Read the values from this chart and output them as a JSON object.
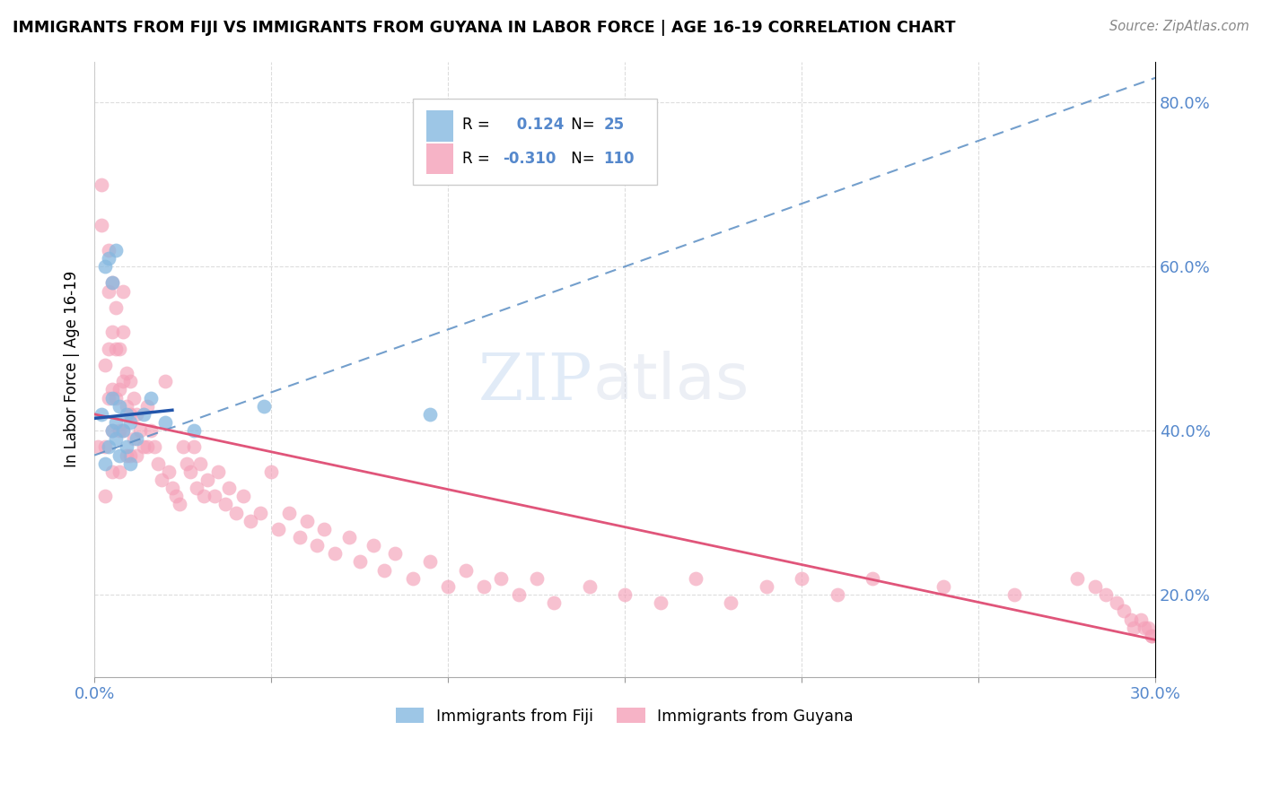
{
  "title": "IMMIGRANTS FROM FIJI VS IMMIGRANTS FROM GUYANA IN LABOR FORCE | AGE 16-19 CORRELATION CHART",
  "source": "Source: ZipAtlas.com",
  "ylabel": "In Labor Force | Age 16-19",
  "xlim": [
    0.0,
    0.3
  ],
  "ylim": [
    0.1,
    0.85
  ],
  "xtick_positions": [
    0.0,
    0.05,
    0.1,
    0.15,
    0.2,
    0.25,
    0.3
  ],
  "xticklabels": [
    "0.0%",
    "",
    "",
    "",
    "",
    "",
    "30.0%"
  ],
  "ytick_positions": [
    0.2,
    0.4,
    0.6,
    0.8
  ],
  "yticklabels": [
    "20.0%",
    "40.0%",
    "60.0%",
    "80.0%"
  ],
  "fiji_color": "#85b8e0",
  "guyana_color": "#f4a0b8",
  "fiji_trend_color": "#5b8ec4",
  "guyana_trend_color": "#e0557a",
  "fiji_R": 0.124,
  "fiji_N": 25,
  "guyana_R": -0.31,
  "guyana_N": 110,
  "tick_color": "#5588cc",
  "grid_color": "#dddddd",
  "fiji_scatter_x": [
    0.002,
    0.003,
    0.003,
    0.004,
    0.004,
    0.005,
    0.005,
    0.005,
    0.006,
    0.006,
    0.006,
    0.007,
    0.007,
    0.008,
    0.009,
    0.009,
    0.01,
    0.01,
    0.012,
    0.014,
    0.016,
    0.02,
    0.028,
    0.048,
    0.095
  ],
  "fiji_scatter_y": [
    0.42,
    0.36,
    0.6,
    0.38,
    0.61,
    0.4,
    0.58,
    0.44,
    0.39,
    0.41,
    0.62,
    0.37,
    0.43,
    0.4,
    0.42,
    0.38,
    0.41,
    0.36,
    0.39,
    0.42,
    0.44,
    0.41,
    0.4,
    0.43,
    0.42
  ],
  "guyana_scatter_x": [
    0.001,
    0.002,
    0.002,
    0.003,
    0.003,
    0.003,
    0.004,
    0.004,
    0.004,
    0.004,
    0.005,
    0.005,
    0.005,
    0.005,
    0.005,
    0.006,
    0.006,
    0.006,
    0.007,
    0.007,
    0.007,
    0.007,
    0.008,
    0.008,
    0.008,
    0.008,
    0.009,
    0.009,
    0.009,
    0.01,
    0.01,
    0.01,
    0.011,
    0.011,
    0.012,
    0.012,
    0.013,
    0.014,
    0.015,
    0.015,
    0.016,
    0.017,
    0.018,
    0.019,
    0.02,
    0.021,
    0.022,
    0.023,
    0.024,
    0.025,
    0.026,
    0.027,
    0.028,
    0.029,
    0.03,
    0.031,
    0.032,
    0.034,
    0.035,
    0.037,
    0.038,
    0.04,
    0.042,
    0.044,
    0.047,
    0.05,
    0.052,
    0.055,
    0.058,
    0.06,
    0.063,
    0.065,
    0.068,
    0.072,
    0.075,
    0.079,
    0.082,
    0.085,
    0.09,
    0.095,
    0.1,
    0.105,
    0.11,
    0.115,
    0.12,
    0.125,
    0.13,
    0.14,
    0.15,
    0.16,
    0.17,
    0.18,
    0.19,
    0.2,
    0.21,
    0.22,
    0.24,
    0.26,
    0.278,
    0.283,
    0.286,
    0.289,
    0.291,
    0.293,
    0.294,
    0.296,
    0.297,
    0.298,
    0.299,
    0.299
  ],
  "guyana_scatter_y": [
    0.38,
    0.7,
    0.65,
    0.48,
    0.38,
    0.32,
    0.62,
    0.57,
    0.5,
    0.44,
    0.58,
    0.52,
    0.45,
    0.4,
    0.35,
    0.55,
    0.5,
    0.44,
    0.5,
    0.45,
    0.4,
    0.35,
    0.57,
    0.52,
    0.46,
    0.4,
    0.47,
    0.43,
    0.37,
    0.46,
    0.42,
    0.37,
    0.44,
    0.39,
    0.42,
    0.37,
    0.4,
    0.38,
    0.43,
    0.38,
    0.4,
    0.38,
    0.36,
    0.34,
    0.46,
    0.35,
    0.33,
    0.32,
    0.31,
    0.38,
    0.36,
    0.35,
    0.38,
    0.33,
    0.36,
    0.32,
    0.34,
    0.32,
    0.35,
    0.31,
    0.33,
    0.3,
    0.32,
    0.29,
    0.3,
    0.35,
    0.28,
    0.3,
    0.27,
    0.29,
    0.26,
    0.28,
    0.25,
    0.27,
    0.24,
    0.26,
    0.23,
    0.25,
    0.22,
    0.24,
    0.21,
    0.23,
    0.21,
    0.22,
    0.2,
    0.22,
    0.19,
    0.21,
    0.2,
    0.19,
    0.22,
    0.19,
    0.21,
    0.22,
    0.2,
    0.22,
    0.21,
    0.2,
    0.22,
    0.21,
    0.2,
    0.19,
    0.18,
    0.17,
    0.16,
    0.17,
    0.16,
    0.16,
    0.15,
    0.15
  ]
}
